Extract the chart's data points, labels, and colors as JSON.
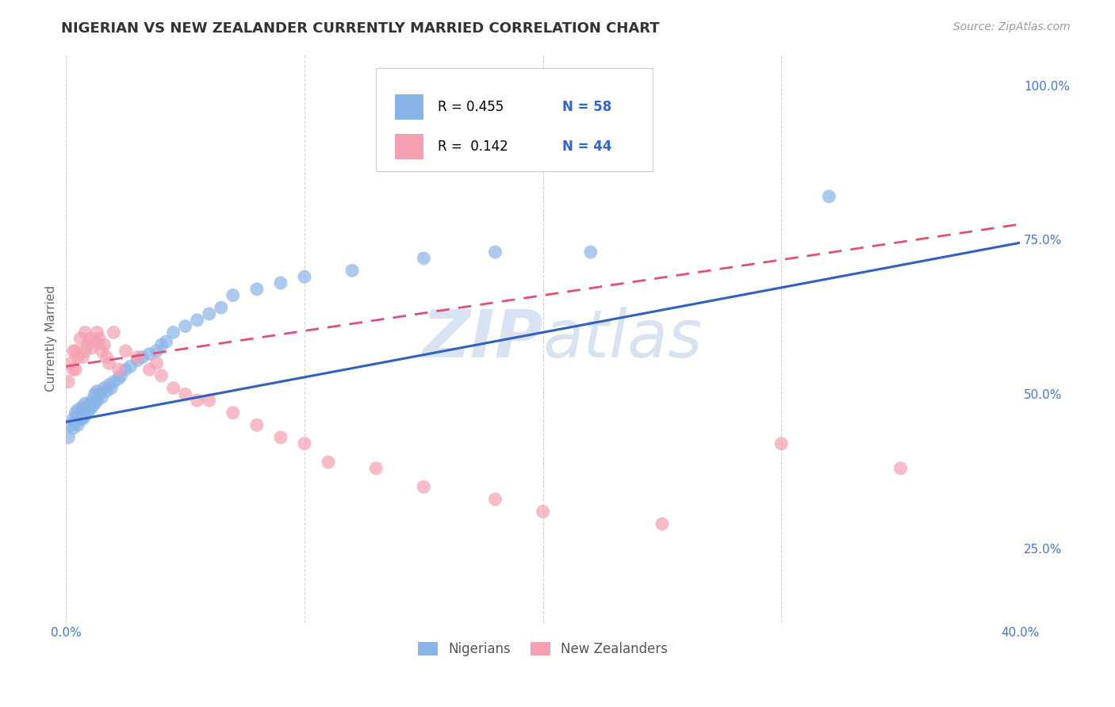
{
  "title": "NIGERIAN VS NEW ZEALANDER CURRENTLY MARRIED CORRELATION CHART",
  "source_text": "Source: ZipAtlas.com",
  "ylabel": "Currently Married",
  "xlim": [
    0.0,
    0.4
  ],
  "ylim": [
    0.13,
    1.05
  ],
  "xticks": [
    0.0,
    0.1,
    0.2,
    0.3,
    0.4
  ],
  "xtick_labels": [
    "0.0%",
    "",
    "",
    "",
    "40.0%"
  ],
  "yticks": [
    0.25,
    0.5,
    0.75,
    1.0
  ],
  "ytick_labels": [
    "25.0%",
    "50.0%",
    "75.0%",
    "100.0%"
  ],
  "blue_color": "#8ab4e8",
  "pink_color": "#f4a0b0",
  "trend_blue": "#3060c0",
  "trend_pink": "#e05070",
  "R_blue": 0.455,
  "N_blue": 58,
  "R_pink": 0.142,
  "N_pink": 44,
  "legend_labels": [
    "Nigerians",
    "New Zealanders"
  ],
  "blue_scatter_x": [
    0.001,
    0.002,
    0.003,
    0.003,
    0.004,
    0.004,
    0.005,
    0.005,
    0.005,
    0.006,
    0.006,
    0.007,
    0.007,
    0.007,
    0.008,
    0.008,
    0.008,
    0.009,
    0.009,
    0.01,
    0.01,
    0.011,
    0.011,
    0.012,
    0.012,
    0.013,
    0.013,
    0.014,
    0.015,
    0.016,
    0.017,
    0.018,
    0.019,
    0.02,
    0.022,
    0.023,
    0.025,
    0.027,
    0.03,
    0.032,
    0.035,
    0.038,
    0.04,
    0.042,
    0.045,
    0.05,
    0.055,
    0.06,
    0.065,
    0.07,
    0.08,
    0.09,
    0.1,
    0.12,
    0.15,
    0.18,
    0.22,
    0.32
  ],
  "blue_scatter_y": [
    0.43,
    0.45,
    0.445,
    0.46,
    0.455,
    0.47,
    0.45,
    0.465,
    0.475,
    0.46,
    0.47,
    0.46,
    0.475,
    0.48,
    0.465,
    0.475,
    0.485,
    0.47,
    0.48,
    0.475,
    0.485,
    0.48,
    0.49,
    0.485,
    0.5,
    0.49,
    0.505,
    0.5,
    0.495,
    0.51,
    0.505,
    0.515,
    0.51,
    0.52,
    0.525,
    0.53,
    0.54,
    0.545,
    0.555,
    0.56,
    0.565,
    0.57,
    0.58,
    0.585,
    0.6,
    0.61,
    0.62,
    0.63,
    0.64,
    0.66,
    0.67,
    0.68,
    0.69,
    0.7,
    0.72,
    0.73,
    0.73,
    0.82
  ],
  "pink_scatter_x": [
    0.001,
    0.002,
    0.003,
    0.003,
    0.004,
    0.004,
    0.005,
    0.006,
    0.007,
    0.008,
    0.008,
    0.009,
    0.01,
    0.011,
    0.012,
    0.013,
    0.014,
    0.015,
    0.016,
    0.017,
    0.018,
    0.02,
    0.022,
    0.025,
    0.03,
    0.035,
    0.038,
    0.04,
    0.045,
    0.05,
    0.055,
    0.06,
    0.07,
    0.08,
    0.09,
    0.1,
    0.11,
    0.13,
    0.15,
    0.18,
    0.2,
    0.25,
    0.3,
    0.35
  ],
  "pink_scatter_y": [
    0.52,
    0.55,
    0.54,
    0.57,
    0.54,
    0.57,
    0.56,
    0.59,
    0.56,
    0.57,
    0.6,
    0.58,
    0.59,
    0.575,
    0.585,
    0.6,
    0.59,
    0.57,
    0.58,
    0.56,
    0.55,
    0.6,
    0.54,
    0.57,
    0.56,
    0.54,
    0.55,
    0.53,
    0.51,
    0.5,
    0.49,
    0.49,
    0.47,
    0.45,
    0.43,
    0.42,
    0.39,
    0.38,
    0.35,
    0.33,
    0.31,
    0.29,
    0.42,
    0.38
  ],
  "pink_trend_x_start": 0.0,
  "pink_trend_x_end": 0.4,
  "blue_trend_x_start": 0.0,
  "blue_trend_x_end": 0.4
}
